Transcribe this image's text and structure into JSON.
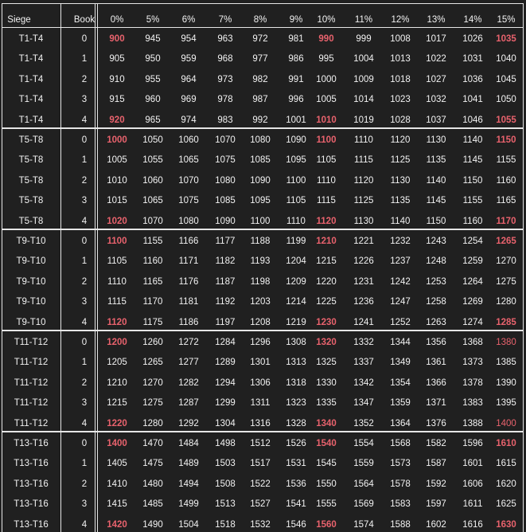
{
  "headers": [
    "Siege",
    "Book",
    "0%",
    "5%",
    "6%",
    "7%",
    "8%",
    "9%",
    "10%",
    "11%",
    "12%",
    "13%",
    "14%",
    "15%"
  ],
  "colors": {
    "background": "#202020",
    "text": "#f2f2f2",
    "highlight": "#e8626d",
    "rule": "#e6e6e6"
  },
  "groups": [
    {
      "siege": "T1-T4",
      "rows": [
        {
          "book": "0",
          "vals": [
            "900",
            "945",
            "954",
            "963",
            "972",
            "981",
            "990",
            "999",
            "1008",
            "1017",
            "1026",
            "1035"
          ],
          "hl": {
            "0": "b",
            "6": "b",
            "11": "b"
          }
        },
        {
          "book": "1",
          "vals": [
            "905",
            "950",
            "959",
            "968",
            "977",
            "986",
            "995",
            "1004",
            "1013",
            "1022",
            "1031",
            "1040"
          ],
          "hl": {}
        },
        {
          "book": "2",
          "vals": [
            "910",
            "955",
            "964",
            "973",
            "982",
            "991",
            "1000",
            "1009",
            "1018",
            "1027",
            "1036",
            "1045"
          ],
          "hl": {}
        },
        {
          "book": "3",
          "vals": [
            "915",
            "960",
            "969",
            "978",
            "987",
            "996",
            "1005",
            "1014",
            "1023",
            "1032",
            "1041",
            "1050"
          ],
          "hl": {}
        },
        {
          "book": "4",
          "vals": [
            "920",
            "965",
            "974",
            "983",
            "992",
            "1001",
            "1010",
            "1019",
            "1028",
            "1037",
            "1046",
            "1055"
          ],
          "hl": {
            "0": "b",
            "6": "b",
            "11": "b"
          }
        }
      ]
    },
    {
      "siege": "T5-T8",
      "rows": [
        {
          "book": "0",
          "vals": [
            "1000",
            "1050",
            "1060",
            "1070",
            "1080",
            "1090",
            "1100",
            "1110",
            "1120",
            "1130",
            "1140",
            "1150"
          ],
          "hl": {
            "0": "b",
            "6": "b",
            "11": "b"
          }
        },
        {
          "book": "1",
          "vals": [
            "1005",
            "1055",
            "1065",
            "1075",
            "1085",
            "1095",
            "1105",
            "1115",
            "1125",
            "1135",
            "1145",
            "1155"
          ],
          "hl": {}
        },
        {
          "book": "2",
          "vals": [
            "1010",
            "1060",
            "1070",
            "1080",
            "1090",
            "1100",
            "1110",
            "1120",
            "1130",
            "1140",
            "1150",
            "1160"
          ],
          "hl": {}
        },
        {
          "book": "3",
          "vals": [
            "1015",
            "1065",
            "1075",
            "1085",
            "1095",
            "1105",
            "1115",
            "1125",
            "1135",
            "1145",
            "1155",
            "1165"
          ],
          "hl": {}
        },
        {
          "book": "4",
          "vals": [
            "1020",
            "1070",
            "1080",
            "1090",
            "1100",
            "1110",
            "1120",
            "1130",
            "1140",
            "1150",
            "1160",
            "1170"
          ],
          "hl": {
            "0": "b",
            "6": "b",
            "11": "b"
          }
        }
      ]
    },
    {
      "siege": "T9-T10",
      "rows": [
        {
          "book": "0",
          "vals": [
            "1100",
            "1155",
            "1166",
            "1177",
            "1188",
            "1199",
            "1210",
            "1221",
            "1232",
            "1243",
            "1254",
            "1265"
          ],
          "hl": {
            "0": "b",
            "6": "b",
            "11": "b"
          }
        },
        {
          "book": "1",
          "vals": [
            "1105",
            "1160",
            "1171",
            "1182",
            "1193",
            "1204",
            "1215",
            "1226",
            "1237",
            "1248",
            "1259",
            "1270"
          ],
          "hl": {}
        },
        {
          "book": "2",
          "vals": [
            "1110",
            "1165",
            "1176",
            "1187",
            "1198",
            "1209",
            "1220",
            "1231",
            "1242",
            "1253",
            "1264",
            "1275"
          ],
          "hl": {}
        },
        {
          "book": "3",
          "vals": [
            "1115",
            "1170",
            "1181",
            "1192",
            "1203",
            "1214",
            "1225",
            "1236",
            "1247",
            "1258",
            "1269",
            "1280"
          ],
          "hl": {}
        },
        {
          "book": "4",
          "vals": [
            "1120",
            "1175",
            "1186",
            "1197",
            "1208",
            "1219",
            "1230",
            "1241",
            "1252",
            "1263",
            "1274",
            "1285"
          ],
          "hl": {
            "0": "b",
            "6": "b",
            "11": "b"
          }
        }
      ]
    },
    {
      "siege": "T11-T12",
      "rows": [
        {
          "book": "0",
          "vals": [
            "1200",
            "1260",
            "1272",
            "1284",
            "1296",
            "1308",
            "1320",
            "1332",
            "1344",
            "1356",
            "1368",
            "1380"
          ],
          "hl": {
            "0": "b",
            "6": "b",
            "11": "p"
          }
        },
        {
          "book": "1",
          "vals": [
            "1205",
            "1265",
            "1277",
            "1289",
            "1301",
            "1313",
            "1325",
            "1337",
            "1349",
            "1361",
            "1373",
            "1385"
          ],
          "hl": {}
        },
        {
          "book": "2",
          "vals": [
            "1210",
            "1270",
            "1282",
            "1294",
            "1306",
            "1318",
            "1330",
            "1342",
            "1354",
            "1366",
            "1378",
            "1390"
          ],
          "hl": {}
        },
        {
          "book": "3",
          "vals": [
            "1215",
            "1275",
            "1287",
            "1299",
            "1311",
            "1323",
            "1335",
            "1347",
            "1359",
            "1371",
            "1383",
            "1395"
          ],
          "hl": {}
        },
        {
          "book": "4",
          "vals": [
            "1220",
            "1280",
            "1292",
            "1304",
            "1316",
            "1328",
            "1340",
            "1352",
            "1364",
            "1376",
            "1388",
            "1400"
          ],
          "hl": {
            "0": "b",
            "6": "b",
            "11": "p"
          }
        }
      ]
    },
    {
      "siege": "T13-T16",
      "rows": [
        {
          "book": "0",
          "vals": [
            "1400",
            "1470",
            "1484",
            "1498",
            "1512",
            "1526",
            "1540",
            "1554",
            "1568",
            "1582",
            "1596",
            "1610"
          ],
          "hl": {
            "0": "b",
            "6": "b",
            "11": "b"
          }
        },
        {
          "book": "1",
          "vals": [
            "1405",
            "1475",
            "1489",
            "1503",
            "1517",
            "1531",
            "1545",
            "1559",
            "1573",
            "1587",
            "1601",
            "1615"
          ],
          "hl": {}
        },
        {
          "book": "2",
          "vals": [
            "1410",
            "1480",
            "1494",
            "1508",
            "1522",
            "1536",
            "1550",
            "1564",
            "1578",
            "1592",
            "1606",
            "1620"
          ],
          "hl": {}
        },
        {
          "book": "3",
          "vals": [
            "1415",
            "1485",
            "1499",
            "1513",
            "1527",
            "1541",
            "1555",
            "1569",
            "1583",
            "1597",
            "1611",
            "1625"
          ],
          "hl": {}
        },
        {
          "book": "4",
          "vals": [
            "1420",
            "1490",
            "1504",
            "1518",
            "1532",
            "1546",
            "1560",
            "1574",
            "1588",
            "1602",
            "1616",
            "1630"
          ],
          "hl": {
            "0": "b",
            "6": "b",
            "11": "b"
          }
        }
      ]
    }
  ]
}
